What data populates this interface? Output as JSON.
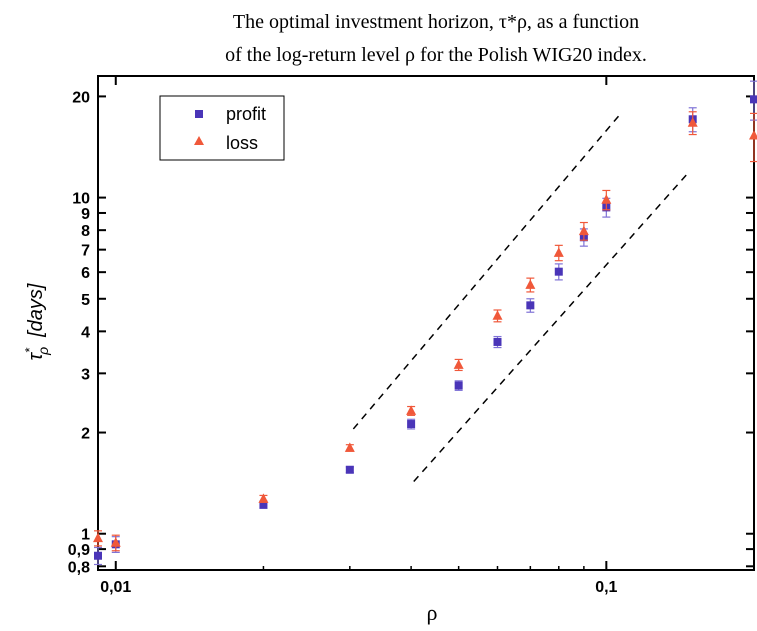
{
  "chart_data": {
    "type": "scatter",
    "title_line1": "The optimal investment horizon, τ*ρ, as a function",
    "title_line2": "of the log-return level ρ for the Polish WIG20 index.",
    "xlabel": "ρ",
    "ylabel_tau": "τ",
    "ylabel_sup": "*",
    "ylabel_sub": "ρ",
    "ylabel_unit": "[days]",
    "x_scale": "log",
    "y_scale": "log",
    "xlim": [
      0.0092,
      0.2
    ],
    "ylim": [
      0.78,
      23
    ],
    "x_ticks": [
      {
        "value": 0.01,
        "label": "0,01"
      },
      {
        "value": 0.1,
        "label": "0,1"
      }
    ],
    "y_ticks": [
      {
        "value": 0.8,
        "label": "0,8"
      },
      {
        "value": 0.9,
        "label": "0,9"
      },
      {
        "value": 1,
        "label": "1"
      },
      {
        "value": 2,
        "label": "2"
      },
      {
        "value": 3,
        "label": "3"
      },
      {
        "value": 4,
        "label": "4"
      },
      {
        "value": 5,
        "label": "5"
      },
      {
        "value": 6,
        "label": "6"
      },
      {
        "value": 7,
        "label": "7"
      },
      {
        "value": 8,
        "label": "8"
      },
      {
        "value": 9,
        "label": "9"
      },
      {
        "value": 10,
        "label": "10"
      },
      {
        "value": 20,
        "label": "20"
      }
    ],
    "legend_position": "top-left",
    "grid": false,
    "series": [
      {
        "name": "profit",
        "marker": "square",
        "color": "#4a35b8",
        "errcolor": "#7f72d6",
        "points": [
          {
            "x": 0.0092,
            "y": 0.86,
            "err": 0.05
          },
          {
            "x": 0.01,
            "y": 0.93,
            "err": 0.05
          },
          {
            "x": 0.02,
            "y": 1.22,
            "err": 0.03
          },
          {
            "x": 0.03,
            "y": 1.55,
            "err": 0.03
          },
          {
            "x": 0.04,
            "y": 2.12,
            "err": 0.07
          },
          {
            "x": 0.05,
            "y": 2.76,
            "err": 0.09
          },
          {
            "x": 0.06,
            "y": 3.72,
            "err": 0.14
          },
          {
            "x": 0.07,
            "y": 4.78,
            "err": 0.22
          },
          {
            "x": 0.08,
            "y": 6.02,
            "err": 0.33
          },
          {
            "x": 0.09,
            "y": 7.62,
            "err": 0.45
          },
          {
            "x": 0.1,
            "y": 9.35,
            "err": 0.6
          },
          {
            "x": 0.15,
            "y": 17.1,
            "err": 1.4
          },
          {
            "x": 0.2,
            "y": 19.6,
            "err": 2.6
          }
        ]
      },
      {
        "name": "loss",
        "marker": "triangle",
        "color": "#f0583a",
        "errcolor": "#f0583a",
        "points": [
          {
            "x": 0.0092,
            "y": 0.97,
            "err": 0.05
          },
          {
            "x": 0.01,
            "y": 0.94,
            "err": 0.05
          },
          {
            "x": 0.02,
            "y": 1.27,
            "err": 0.03
          },
          {
            "x": 0.03,
            "y": 1.8,
            "err": 0.04
          },
          {
            "x": 0.04,
            "y": 2.32,
            "err": 0.07
          },
          {
            "x": 0.05,
            "y": 3.18,
            "err": 0.12
          },
          {
            "x": 0.06,
            "y": 4.45,
            "err": 0.18
          },
          {
            "x": 0.07,
            "y": 5.5,
            "err": 0.26
          },
          {
            "x": 0.08,
            "y": 6.85,
            "err": 0.36
          },
          {
            "x": 0.09,
            "y": 7.95,
            "err": 0.48
          },
          {
            "x": 0.1,
            "y": 9.85,
            "err": 0.65
          },
          {
            "x": 0.15,
            "y": 16.7,
            "err": 1.3
          },
          {
            "x": 0.2,
            "y": 15.3,
            "err": 2.5
          }
        ]
      }
    ],
    "reference_lines": [
      {
        "x1": 0.0305,
        "y1": 2.05,
        "x2": 0.106,
        "y2": 17.5
      },
      {
        "x1": 0.0405,
        "y1": 1.43,
        "x2": 0.148,
        "y2": 12.0
      }
    ]
  }
}
